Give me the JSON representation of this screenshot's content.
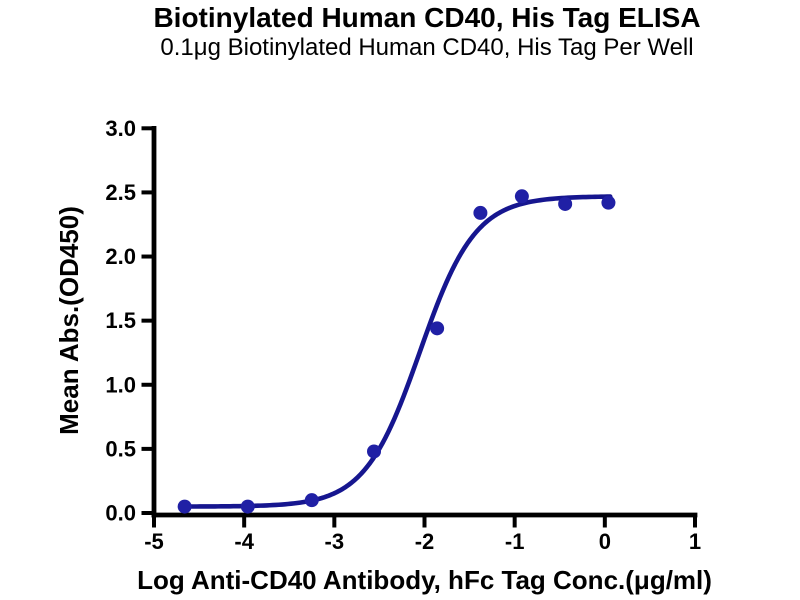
{
  "chart_data": {
    "type": "scatter",
    "title": "Biotinylated Human CD40, His Tag ELISA",
    "subtitle": "0.1μg Biotinylated Human CD40, His Tag Per Well",
    "xlabel": "Log Anti-CD40 Antibody, hFc Tag Conc.(μg/ml)",
    "ylabel": "Mean Abs.(OD450)",
    "xlim": [
      -5,
      1
    ],
    "ylim": [
      0,
      3
    ],
    "x_ticks": [
      "-5",
      "-4",
      "-3",
      "-2",
      "-1",
      "0",
      "1"
    ],
    "y_ticks": [
      "0.0",
      "0.5",
      "1.0",
      "1.5",
      "2.0",
      "2.5",
      "3.0"
    ],
    "grid": false,
    "legend": "none",
    "series": [
      {
        "points": [
          {
            "x": -4.66,
            "y": 0.05
          },
          {
            "x": -3.96,
            "y": 0.05
          },
          {
            "x": -3.25,
            "y": 0.1
          },
          {
            "x": -2.56,
            "y": 0.48
          },
          {
            "x": -1.86,
            "y": 1.44
          },
          {
            "x": -1.38,
            "y": 2.34
          },
          {
            "x": -0.92,
            "y": 2.47
          },
          {
            "x": -0.44,
            "y": 2.41
          },
          {
            "x": 0.04,
            "y": 2.42
          }
        ]
      }
    ],
    "fit_curve": {
      "model": "4PL sigmoidal dose-response",
      "bottom": 0.05,
      "top": 2.47,
      "log_ec50": -2.05,
      "hill": 1.42,
      "x_start": -4.66,
      "x_end": 0.06
    },
    "colors": {
      "curve": "#16168f",
      "marker": "#2020a5",
      "axis": "#000000",
      "text": "#000000",
      "background": "#ffffff"
    }
  }
}
